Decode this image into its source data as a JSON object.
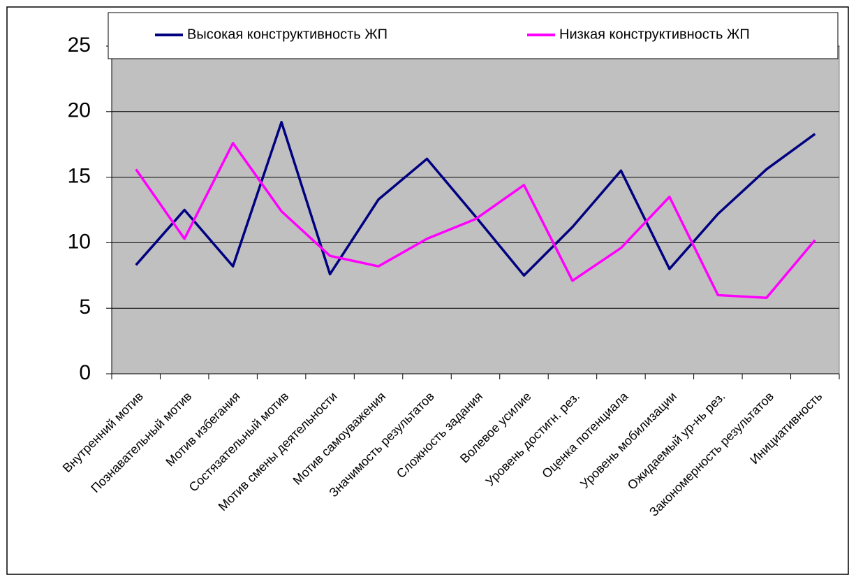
{
  "chart_data": {
    "type": "line",
    "categories": [
      "Внутренний мотив",
      "Познавательный мотив",
      "Мотив избегания",
      "Состязательный мотив",
      "Мотив смены деятельности",
      "Мотив самоуважения",
      "Значимость результатов",
      "Сложность задания",
      "Волевое усилие",
      "Уровень достигн. рез.",
      "Оценка потенциала",
      "Уровень мобилизации",
      "Ожидаемый ур-нь рез.",
      "Закономерность результатов",
      "Инициативность"
    ],
    "series": [
      {
        "name": "Высокая конструктивность ЖП",
        "color": "#000080",
        "values": [
          8.3,
          12.5,
          8.2,
          19.2,
          7.6,
          13.3,
          16.4,
          12.0,
          7.5,
          11.2,
          15.5,
          8.0,
          12.2,
          15.6,
          18.3
        ]
      },
      {
        "name": "Низкая конструктивность ЖП",
        "color": "#ff00ff",
        "values": [
          15.6,
          10.3,
          17.6,
          12.4,
          9.0,
          8.2,
          10.3,
          11.8,
          14.4,
          7.1,
          9.6,
          13.5,
          6.0,
          5.8,
          10.2
        ]
      }
    ],
    "ylim": [
      0,
      25
    ],
    "yticks": [
      0,
      5,
      10,
      15,
      20,
      25
    ],
    "grid": true,
    "legend": "top"
  }
}
